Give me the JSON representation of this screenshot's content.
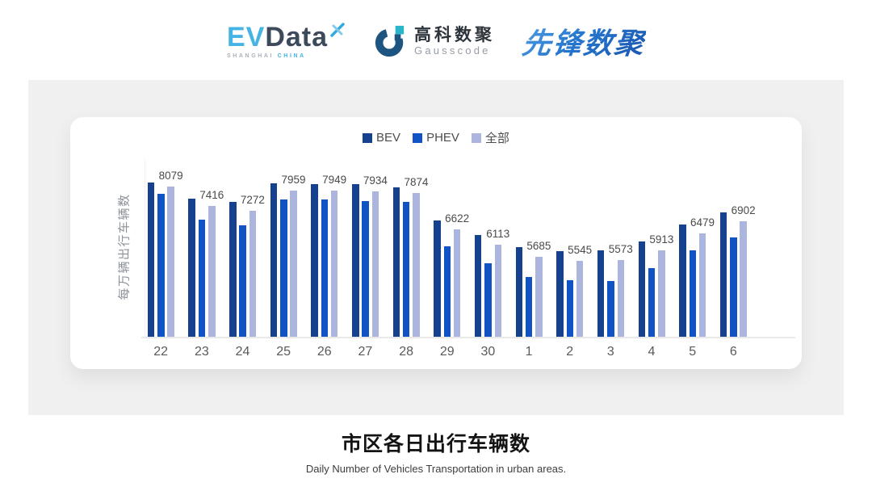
{
  "header": {
    "evdata": {
      "ev": "EV",
      "data": "Data",
      "sub_left": "SHANGHAI",
      "sub_right": "CHINA"
    },
    "gausscode": {
      "cn": "高科数聚",
      "en": "Gausscode"
    },
    "xianfeng": {
      "text": "先锋数聚"
    }
  },
  "chart_data": {
    "type": "bar",
    "title": "市区各日出行车辆数",
    "subtitle": "Daily Number of Vehicles Transportation in urban areas.",
    "ylabel": "每万辆出行车辆数",
    "xlabel": "",
    "categories": [
      "22",
      "23",
      "24",
      "25",
      "26",
      "27",
      "28",
      "29",
      "30",
      "1",
      "2",
      "3",
      "4",
      "5",
      "6"
    ],
    "series": [
      {
        "name": "BEV",
        "color": "#16418f",
        "values": [
          8240,
          7690,
          7570,
          8190,
          8170,
          8170,
          8060,
          6930,
          6420,
          6020,
          5890,
          5910,
          6210,
          6790,
          7220
        ]
      },
      {
        "name": "PHEV",
        "color": "#1053c5",
        "values": [
          7850,
          6970,
          6760,
          7660,
          7640,
          7600,
          7570,
          6050,
          5480,
          4990,
          4880,
          4870,
          5300,
          5910,
          6350
        ]
      },
      {
        "name": "全部",
        "color": "#abb5de",
        "values": [
          8079,
          7416,
          7272,
          7959,
          7949,
          7934,
          7874,
          6622,
          6113,
          5685,
          5545,
          5573,
          5913,
          6479,
          6902
        ]
      }
    ],
    "data_labels": [
      8079,
      7416,
      7272,
      7959,
      7949,
      7934,
      7874,
      6622,
      6113,
      5685,
      5545,
      5573,
      5913,
      6479,
      6902
    ],
    "labeled_series": "全部",
    "ylim": [
      2950,
      8450
    ],
    "y_ticks_visible": false,
    "grid": false,
    "legend_position": "top",
    "colors": {
      "tick": "#5a5a5a",
      "data_label": "#4a4a4a",
      "axis_line": "#e9e9e9"
    }
  }
}
